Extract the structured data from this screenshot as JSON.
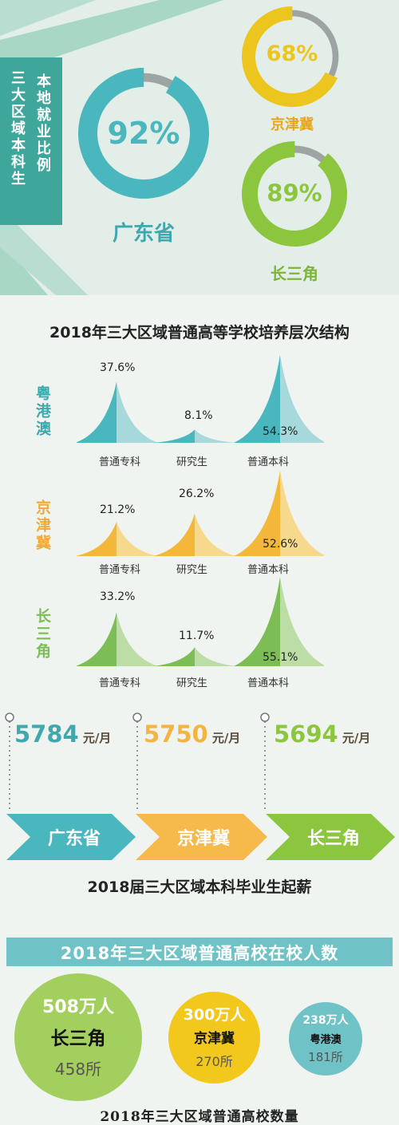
{
  "employment": {
    "side_left": "三大区域本科生",
    "side_right": "本地就业比例",
    "rings": [
      {
        "region": "广东省",
        "percent": 92,
        "label": "92%",
        "color": "#4ab7bf"
      },
      {
        "region": "京津冀",
        "percent": 68,
        "label": "68%",
        "color": "#ecc51e"
      },
      {
        "region": "长三角",
        "percent": 89,
        "label": "89%",
        "color": "#8cc63f"
      }
    ]
  },
  "structure": {
    "title": "2018年三大区域普通高等学校培养层次结构",
    "categories": [
      "普通专科",
      "研究生",
      "普通本科"
    ],
    "groups": [
      {
        "name": "粤港澳",
        "color": "#4ab7bf",
        "light": "#a7d9dc",
        "values": [
          37.6,
          8.1,
          54.3
        ],
        "labels": [
          "37.6%",
          "8.1%",
          "54.3%"
        ]
      },
      {
        "name": "京津冀",
        "color": "#f3b83a",
        "light": "#f7d98d",
        "values": [
          21.2,
          26.2,
          52.6
        ],
        "labels": [
          "21.2%",
          "26.2%",
          "52.6%"
        ]
      },
      {
        "name": "长三角",
        "color": "#7cbe55",
        "light": "#bcdda5",
        "values": [
          33.2,
          11.7,
          55.1
        ],
        "labels": [
          "33.2%",
          "11.7%",
          "55.1%"
        ]
      }
    ]
  },
  "salary": {
    "title": "2018届三大区域本科毕业生起薪",
    "unit": "元/月",
    "items": [
      {
        "value": "5784",
        "region": "广东省",
        "color": "#40a9b0"
      },
      {
        "value": "5750",
        "region": "京津冀",
        "color": "#f3b440"
      },
      {
        "value": "5694",
        "region": "长三角",
        "color": "#8cc63f"
      }
    ]
  },
  "enrollment": {
    "title": "2018年三大区域普通高校在校人数",
    "footer": "2018年三大区域普通高校数量",
    "bubbles": [
      {
        "students": "508万人",
        "region": "长三角",
        "schools": "458所",
        "color": "#a3cf5e"
      },
      {
        "students": "300万人",
        "region": "京津冀",
        "schools": "270所",
        "color": "#f2c81c"
      },
      {
        "students": "238万人",
        "region": "粤港澳",
        "schools": "181所",
        "color": "#6fc3c6"
      }
    ]
  },
  "chart_data": [
    {
      "type": "pie",
      "title": "",
      "categories": [
        "广东省",
        "京津冀",
        "长三角"
      ],
      "values": [
        92,
        68,
        89
      ],
      "ylabel": "本地就业比例 (%)"
    },
    {
      "type": "bar",
      "title": "2018年三大区域普通高等学校培养层次结构",
      "categories": [
        "普通专科",
        "研究生",
        "普通本科"
      ],
      "series": [
        {
          "name": "粤港澳",
          "values": [
            37.6,
            8.1,
            54.3
          ]
        },
        {
          "name": "京津冀",
          "values": [
            21.2,
            26.2,
            52.6
          ]
        },
        {
          "name": "长三角",
          "values": [
            33.2,
            11.7,
            55.1
          ]
        }
      ],
      "ylim": [
        0,
        60
      ]
    },
    {
      "type": "bar",
      "title": "2018届三大区域本科毕业生起薪",
      "categories": [
        "广东省",
        "京津冀",
        "长三角"
      ],
      "values": [
        5784,
        5750,
        5694
      ],
      "ylabel": "元/月"
    },
    {
      "type": "bar",
      "title": "2018年三大区域普通高校在校人数",
      "categories": [
        "长三角",
        "京津冀",
        "粤港澳"
      ],
      "series": [
        {
          "name": "万人",
          "values": [
            508,
            300,
            238
          ]
        },
        {
          "name": "所",
          "values": [
            458,
            270,
            181
          ]
        }
      ]
    }
  ]
}
